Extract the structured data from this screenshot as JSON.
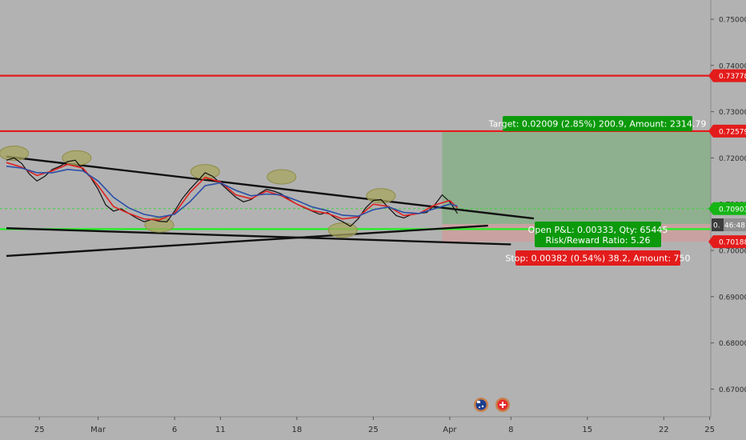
{
  "chart_data": {
    "type": "line",
    "y_axis": {
      "ylim": [
        0.6663,
        0.7597
      ],
      "ticks": [
        "0.75000",
        "0.74000",
        "0.73000",
        "0.72000",
        "0.71000",
        "0.70000",
        "0.69000",
        "0.68000",
        "0.67000"
      ],
      "tick_values": [
        0.75,
        0.74,
        0.73,
        0.72,
        0.71,
        0.7,
        0.69,
        0.68,
        0.67
      ],
      "side": "right"
    },
    "x_axis": {
      "ticks": [
        "25",
        "Mar",
        "6",
        "11",
        "18",
        "25",
        "Apr",
        "8",
        "15",
        "22",
        "25"
      ],
      "tick_positions": [
        2,
        6,
        11,
        14,
        19,
        24,
        29,
        33,
        38,
        43,
        46
      ]
    },
    "grid": false,
    "price_badges": [
      {
        "label": "0.73778",
        "value": 0.73778,
        "color": "#e31b1b"
      },
      {
        "label": "0.72579",
        "value": 0.72579,
        "color": "#e31b1b"
      },
      {
        "label": "0.70903",
        "value": 0.70903,
        "color": "#16b516"
      },
      {
        "label": "0.70188",
        "value": 0.70188,
        "color": "#e31b1b"
      }
    ],
    "horizontal_levels": [
      {
        "value": 0.73778,
        "color": "#e31b1b"
      },
      {
        "value": 0.72579,
        "color": "#e31b1b"
      },
      {
        "value": 0.7046,
        "color": "#22ee22"
      },
      {
        "value": 0.70903,
        "color": "#3dd63d",
        "dashed": true
      }
    ],
    "trendlines": [
      {
        "x": [
          0,
          34.5
        ],
        "y": [
          0.7203,
          0.7069
        ],
        "color": "#111111"
      },
      {
        "x": [
          0,
          33
        ],
        "y": [
          0.7048,
          0.7013
        ],
        "color": "#111111"
      },
      {
        "x": [
          0,
          31.5
        ],
        "y": [
          0.6988,
          0.70535
        ],
        "color": "#111111"
      }
    ],
    "position": {
      "x_start": 28.5,
      "x_end": 47,
      "entry": 0.7057,
      "target": 0.72579,
      "stop": 0.70188,
      "target_label": "Target: 0.02009 (2.85%) 200.9, Amount: 2314.79",
      "stop_label": "Stop: 0.00382 (0.54%) 38.2, Amount: 750",
      "pnl_label": "Open P&L: 0.00333, Qty: 65445",
      "rr_label": "Risk/Reward Ratio: 5.26",
      "entry_badge_label": "0.",
      "entry_badge_time": "46:48"
    },
    "ellipses": [
      {
        "x": 0.5,
        "y": 0.721
      },
      {
        "x": 4.6,
        "y": 0.72
      },
      {
        "x": 10.0,
        "y": 0.7055
      },
      {
        "x": 13.0,
        "y": 0.717
      },
      {
        "x": 18.0,
        "y": 0.7159
      },
      {
        "x": 22.0,
        "y": 0.7044
      },
      {
        "x": 24.5,
        "y": 0.7118
      }
    ],
    "series": [
      {
        "name": "",
        "color": "#111111",
        "x": [
          0,
          0.5,
          1,
          1.5,
          2,
          2.5,
          3,
          3.5,
          4,
          4.5,
          5,
          5.5,
          6,
          6.5,
          7,
          7.5,
          8,
          8.5,
          9,
          9.5,
          10,
          10.5,
          11,
          11.5,
          12,
          12.5,
          13,
          13.5,
          14,
          14.5,
          15,
          15.5,
          16,
          16.5,
          17,
          17.5,
          18,
          18.5,
          19,
          19.5,
          20,
          20.5,
          21,
          21.5,
          22,
          22.5,
          23,
          23.5,
          24,
          24.5,
          25,
          25.5,
          26,
          26.5,
          27,
          27.5,
          28,
          28.5,
          29,
          29.5
        ],
        "y": [
          0.7195,
          0.72,
          0.7188,
          0.7165,
          0.715,
          0.716,
          0.7175,
          0.7182,
          0.7192,
          0.7195,
          0.7175,
          0.7158,
          0.7132,
          0.7098,
          0.7085,
          0.709,
          0.708,
          0.707,
          0.7062,
          0.7067,
          0.7063,
          0.7062,
          0.7085,
          0.7112,
          0.7132,
          0.715,
          0.7168,
          0.716,
          0.7145,
          0.713,
          0.7115,
          0.7105,
          0.711,
          0.7122,
          0.7132,
          0.7128,
          0.7122,
          0.711,
          0.71,
          0.7092,
          0.7085,
          0.7078,
          0.7082,
          0.707,
          0.7062,
          0.7052,
          0.7068,
          0.7092,
          0.7108,
          0.711,
          0.7092,
          0.7075,
          0.707,
          0.7078,
          0.708,
          0.7082,
          0.7098,
          0.712,
          0.7105,
          0.708
        ]
      },
      {
        "name": "",
        "color": "#e02020",
        "x": [
          0,
          1,
          2,
          3,
          4,
          5,
          6,
          7,
          8,
          9,
          10,
          11,
          12,
          13,
          14,
          15,
          16,
          17,
          18,
          19,
          20,
          21,
          22,
          23,
          24,
          25,
          26,
          27,
          28,
          29,
          29.5
        ],
        "y": [
          0.719,
          0.718,
          0.7162,
          0.7172,
          0.7186,
          0.7178,
          0.714,
          0.7095,
          0.708,
          0.7068,
          0.7066,
          0.708,
          0.7125,
          0.7158,
          0.7148,
          0.712,
          0.7112,
          0.7128,
          0.7118,
          0.71,
          0.7086,
          0.708,
          0.7068,
          0.7072,
          0.71,
          0.7095,
          0.7075,
          0.708,
          0.7098,
          0.7108,
          0.7092
        ]
      },
      {
        "name": "",
        "color": "#2a4fa8",
        "x": [
          0,
          1,
          2,
          3,
          4,
          5,
          6,
          7,
          8,
          9,
          10,
          11,
          12,
          13,
          14,
          15,
          16,
          17,
          18,
          19,
          20,
          21,
          22,
          23,
          24,
          25,
          26,
          27,
          28,
          29,
          29.5
        ],
        "y": [
          0.7182,
          0.7178,
          0.7168,
          0.7168,
          0.7175,
          0.7172,
          0.715,
          0.7115,
          0.7092,
          0.7078,
          0.7072,
          0.7078,
          0.7105,
          0.714,
          0.7146,
          0.713,
          0.7118,
          0.7122,
          0.712,
          0.7108,
          0.7094,
          0.7086,
          0.7076,
          0.7074,
          0.7088,
          0.7094,
          0.7082,
          0.708,
          0.709,
          0.71,
          0.7096
        ]
      }
    ],
    "event_icons": [
      "australia-flag-icon",
      "switzerland-flag-icon"
    ]
  }
}
